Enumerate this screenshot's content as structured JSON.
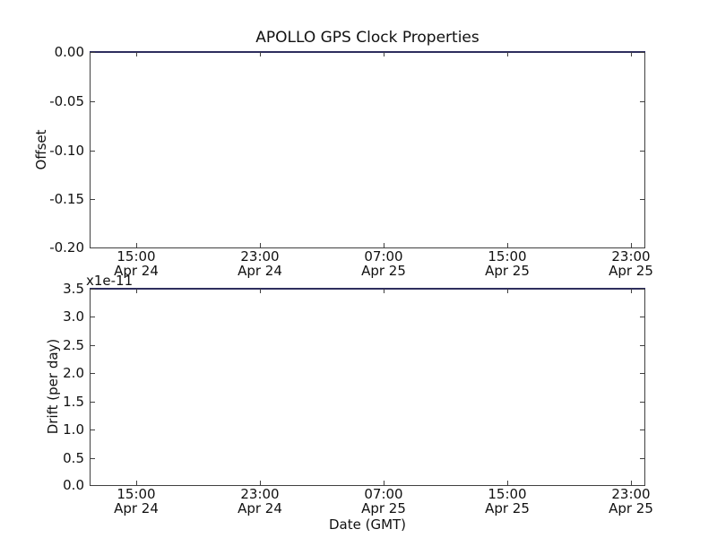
{
  "title": "APOLLO GPS Clock Properties",
  "colors": {
    "frame": "#404040",
    "series_line": "#2e2e5e",
    "background": "#ffffff",
    "text": "#111111"
  },
  "x_axis": {
    "label": "Date (GMT)",
    "tick_times": [
      "15:00",
      "23:00",
      "07:00",
      "15:00",
      "23:00"
    ],
    "tick_dates": [
      "Apr 24",
      "Apr 24",
      "Apr 25",
      "Apr 25",
      "Apr 25"
    ]
  },
  "offset_plot": {
    "ylabel": "Offset",
    "yticks": [
      "0.00",
      "-0.05",
      "-0.10",
      "-0.15",
      "-0.20"
    ]
  },
  "drift_plot": {
    "ylabel": "Drift (per day)",
    "multiplier_text": "x1e-11",
    "yticks": [
      "3.5",
      "3.0",
      "2.5",
      "2.0",
      "1.5",
      "1.0",
      "0.5",
      "0.0"
    ]
  },
  "chart_data": [
    {
      "type": "line",
      "title": "APOLLO GPS Clock Properties",
      "xlabel": "",
      "ylabel": "Offset",
      "x_tick_labels": [
        "15:00 Apr 24",
        "23:00 Apr 24",
        "07:00 Apr 25",
        "15:00 Apr 25",
        "23:00 Apr 25"
      ],
      "x_range_note": "time axis approx Apr 24 12:00 GMT to Apr 25 24:00 GMT, ticks every 8 hours",
      "ylim": [
        -0.2,
        0.0
      ],
      "yticks": [
        0.0,
        -0.05,
        -0.1,
        -0.15,
        -0.2
      ],
      "grid": false,
      "legend_position": "none",
      "series": [
        {
          "name": "offset",
          "color": "#2e2e5e",
          "description": "flat horizontal line at y = 0.00 spanning the full x-range, drawn along the top axis edge",
          "constant_y": 0.0
        }
      ]
    },
    {
      "type": "line",
      "title": "",
      "xlabel": "Date (GMT)",
      "ylabel": "Drift (per day)",
      "y_multiplier": "1e-11",
      "x_tick_labels": [
        "15:00 Apr 24",
        "23:00 Apr 24",
        "07:00 Apr 25",
        "15:00 Apr 25",
        "23:00 Apr 25"
      ],
      "x_range_note": "time axis approx Apr 24 12:00 GMT to Apr 25 24:00 GMT, ticks every 8 hours",
      "ylim": [
        0.0,
        3.5e-11
      ],
      "yticks_displayed": [
        3.5,
        3.0,
        2.5,
        2.0,
        1.5,
        1.0,
        0.5,
        0.0
      ],
      "grid": false,
      "legend_position": "none",
      "series": [
        {
          "name": "drift",
          "color": "#2e2e5e",
          "description": "flat horizontal line at y = 3.5e-11 spanning the full x-range, drawn along the top axis edge",
          "constant_y": 3.5e-11
        }
      ]
    }
  ]
}
